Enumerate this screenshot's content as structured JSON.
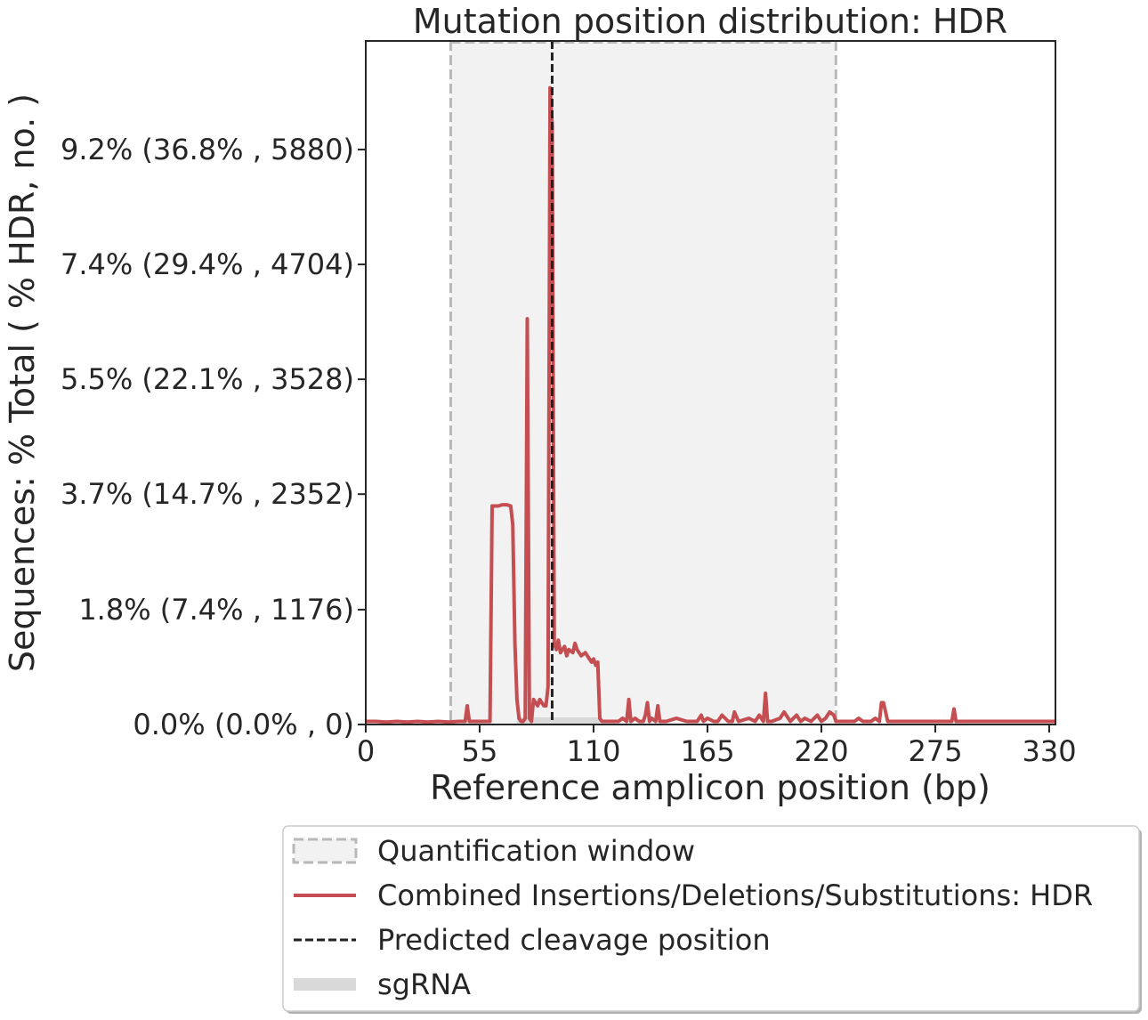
{
  "chart_data": {
    "type": "line",
    "title": "Mutation position distribution: HDR",
    "xlabel": "Reference amplicon position (bp)",
    "ylabel": "Sequences: % Total ( % HDR, no. )",
    "xlim": [
      0,
      333
    ],
    "ylim": [
      0,
      10.95
    ],
    "x_ticks": [
      0,
      55,
      110,
      165,
      220,
      275,
      330
    ],
    "x_tick_labels": [
      "0",
      "55",
      "110",
      "165",
      "220",
      "275",
      "330"
    ],
    "y_ticks": [
      0,
      1.84,
      3.69,
      5.53,
      7.37,
      9.21
    ],
    "y_tick_labels": [
      "0.0% (0.0% , 0)",
      "1.8% (7.4% , 1176)",
      "3.7% (14.7% , 2352)",
      "5.5% (22.1% , 3528)",
      "7.4% (29.4% , 4704)",
      "9.2% (36.8% , 5880)"
    ],
    "quantification_window": [
      41,
      227
    ],
    "predicted_cleavage_position": 90,
    "sgrna": [
      73,
      113
    ],
    "grid": false,
    "legend_placement": "below",
    "legend": [
      {
        "label": "Quantification window",
        "kind": "window"
      },
      {
        "label": "Combined Insertions/Deletions/Substitutions: HDR",
        "kind": "line"
      },
      {
        "label": "Predicted cleavage position",
        "kind": "dashed"
      },
      {
        "label": "sgRNA",
        "kind": "band"
      }
    ],
    "colors": {
      "line": "#c44e52",
      "window_fill": "#f2f2f2",
      "window_edge": "#b8b8b8",
      "cleavage": "#222222",
      "sgrna": "#d9d9d9",
      "axis": "#262626"
    },
    "series": [
      {
        "x": [
          0,
          5,
          10,
          15,
          20,
          25,
          30,
          35,
          40,
          45,
          48,
          49,
          50,
          51,
          52,
          55,
          58,
          60,
          61,
          62,
          64,
          66,
          68,
          70,
          71,
          72,
          73,
          74,
          75,
          76,
          77,
          78,
          79,
          80,
          81,
          82,
          83,
          84,
          85,
          86,
          87,
          88,
          89,
          90,
          91,
          92,
          93,
          94,
          95,
          96,
          97,
          98,
          100,
          101,
          102,
          104,
          106,
          108,
          109,
          110,
          111,
          112,
          113,
          114,
          115,
          116,
          117,
          118,
          120,
          122,
          124,
          126,
          127,
          128,
          130,
          132,
          134,
          135,
          136,
          137,
          138,
          140,
          141,
          142,
          145,
          150,
          155,
          160,
          162,
          163,
          165,
          168,
          170,
          172,
          175,
          177,
          178,
          180,
          185,
          188,
          190,
          192,
          193,
          194,
          196,
          200,
          202,
          205,
          208,
          210,
          212,
          215,
          218,
          220,
          222,
          224,
          226,
          227,
          228,
          232,
          236,
          238,
          240,
          244,
          246,
          248,
          249,
          250,
          252,
          256,
          260,
          265,
          270,
          275,
          280,
          283,
          284,
          285,
          288,
          292,
          296,
          300,
          305,
          310,
          315,
          320,
          325,
          330,
          333
        ],
        "y": [
          0.05,
          0.05,
          0.04,
          0.05,
          0.04,
          0.05,
          0.04,
          0.05,
          0.04,
          0.05,
          0.05,
          0.3,
          0.05,
          0.05,
          0.05,
          0.05,
          0.05,
          0.05,
          3.5,
          3.5,
          3.5,
          3.52,
          3.52,
          3.5,
          3.2,
          1.3,
          0.4,
          0.1,
          0.05,
          0.05,
          0.1,
          6.5,
          0.1,
          0.05,
          0.4,
          0.35,
          0.3,
          0.4,
          0.35,
          0.3,
          0.3,
          0.6,
          10.2,
          9.6,
          1.3,
          1.2,
          1.35,
          1.15,
          1.2,
          1.25,
          1.1,
          1.2,
          1.15,
          1.3,
          1.2,
          1.1,
          1.15,
          1.05,
          1.0,
          1.05,
          0.95,
          1.0,
          0.1,
          0.05,
          0.05,
          0.05,
          0.05,
          0.05,
          0.05,
          0.05,
          0.1,
          0.05,
          0.4,
          0.05,
          0.1,
          0.05,
          0.05,
          0.15,
          0.35,
          0.05,
          0.1,
          0.05,
          0.3,
          0.05,
          0.05,
          0.1,
          0.05,
          0.05,
          0.15,
          0.05,
          0.1,
          0.05,
          0.05,
          0.15,
          0.05,
          0.05,
          0.2,
          0.05,
          0.1,
          0.05,
          0.15,
          0.05,
          0.5,
          0.05,
          0.05,
          0.1,
          0.2,
          0.05,
          0.15,
          0.05,
          0.1,
          0.05,
          0.15,
          0.05,
          0.1,
          0.2,
          0.15,
          0.05,
          0.05,
          0.05,
          0.05,
          0.1,
          0.05,
          0.05,
          0.1,
          0.05,
          0.35,
          0.35,
          0.05,
          0.05,
          0.05,
          0.05,
          0.05,
          0.05,
          0.05,
          0.05,
          0.25,
          0.05,
          0.05,
          0.05,
          0.05,
          0.05,
          0.05,
          0.05,
          0.05,
          0.05,
          0.05,
          0.05,
          0.05
        ]
      }
    ]
  }
}
